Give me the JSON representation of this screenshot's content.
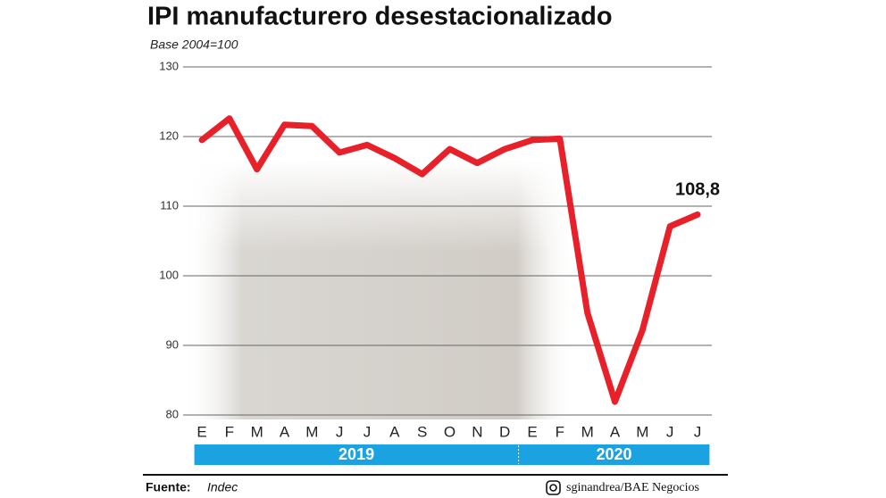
{
  "chart_data": {
    "type": "line",
    "title": "IPI manufacturero desestacionalizado",
    "subtitle": "Base 2004=100",
    "categories": [
      "E",
      "F",
      "M",
      "A",
      "M",
      "J",
      "J",
      "A",
      "S",
      "O",
      "N",
      "D",
      "E",
      "F",
      "M",
      "A",
      "M",
      "J",
      "J"
    ],
    "groups": [
      {
        "label": "2019",
        "span": 12
      },
      {
        "label": "2020",
        "span": 7
      }
    ],
    "series": [
      {
        "name": "IPI",
        "color": "#e8202a",
        "values": [
          119.5,
          122.6,
          115.3,
          121.7,
          121.5,
          117.7,
          118.8,
          116.9,
          114.6,
          118.2,
          116.2,
          118.2,
          119.5,
          119.7,
          94.7,
          81.9,
          92.2,
          107.1,
          108.8
        ],
        "value_labels": [
          null,
          null,
          null,
          null,
          null,
          null,
          null,
          null,
          null,
          null,
          null,
          null,
          null,
          null,
          null,
          null,
          null,
          null,
          "108,8"
        ]
      }
    ],
    "ylim": [
      80,
      130
    ],
    "yticks": [
      80,
      90,
      100,
      110,
      120,
      130
    ],
    "grid": true,
    "source_label": "Fuente:",
    "source": "Indec",
    "credit": "sginandrea/BAE Negocios"
  }
}
